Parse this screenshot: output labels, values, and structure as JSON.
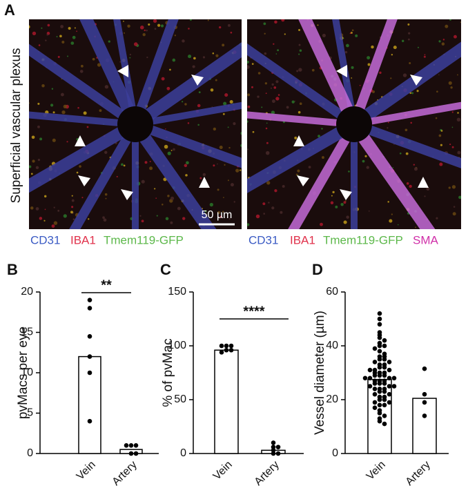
{
  "panel_a": {
    "panel_label": "A",
    "side_label": "Superficial vascular plexus",
    "scale_bar": "50 µm",
    "left_legend": [
      "CD31",
      "IBA1",
      "Tmem119-GFP"
    ],
    "right_legend": [
      "CD31",
      "IBA1",
      "Tmem119-GFP",
      "SMA"
    ]
  },
  "chart_data": [
    {
      "type": "bar",
      "panel_label": "B",
      "ylabel": "pvMacs per eye",
      "categories": [
        "Vein",
        "Artery"
      ],
      "values": [
        12,
        0.5
      ],
      "points": [
        [
          19,
          18,
          14.5,
          12,
          10,
          4
        ],
        [
          1,
          1,
          1,
          0,
          0
        ]
      ],
      "ylim": [
        0,
        20
      ],
      "yticks": [
        0,
        5,
        10,
        15,
        20
      ],
      "significance": "**",
      "color": "#ffffff"
    },
    {
      "type": "bar",
      "panel_label": "C",
      "ylabel": "% of pvMac",
      "categories": [
        "Vein",
        "Artery"
      ],
      "values": [
        96,
        3
      ],
      "points": [
        [
          100,
          100,
          100,
          96,
          96,
          94
        ],
        [
          10,
          6,
          6,
          3,
          0,
          0
        ]
      ],
      "ylim": [
        0,
        150
      ],
      "yticks": [
        0,
        50,
        100,
        150
      ],
      "significance": "****",
      "color": "#ffffff"
    },
    {
      "type": "bar",
      "panel_label": "D",
      "ylabel": "Vessel diameter (µm)",
      "categories": [
        "Vein",
        "Artery"
      ],
      "values": [
        27.5,
        20.5
      ],
      "points": [
        [
          52,
          50,
          48,
          45,
          44,
          43,
          42,
          41,
          40,
          40,
          39,
          38,
          37,
          36,
          36,
          35,
          35,
          34,
          34,
          33,
          33,
          32,
          32,
          31,
          31,
          31,
          30,
          30,
          30,
          29,
          29,
          29,
          28,
          28,
          28,
          28,
          27,
          27,
          27,
          26,
          26,
          26,
          25,
          25,
          25,
          24,
          24,
          24,
          23,
          23,
          22,
          22,
          21,
          21,
          20,
          20,
          19,
          19,
          18,
          18,
          17,
          16,
          15,
          14,
          13,
          12,
          11
        ],
        [
          31.5,
          22,
          19,
          14
        ]
      ],
      "ylim": [
        0,
        60
      ],
      "yticks": [
        0,
        20,
        40,
        60
      ],
      "color": "#ffffff"
    }
  ]
}
